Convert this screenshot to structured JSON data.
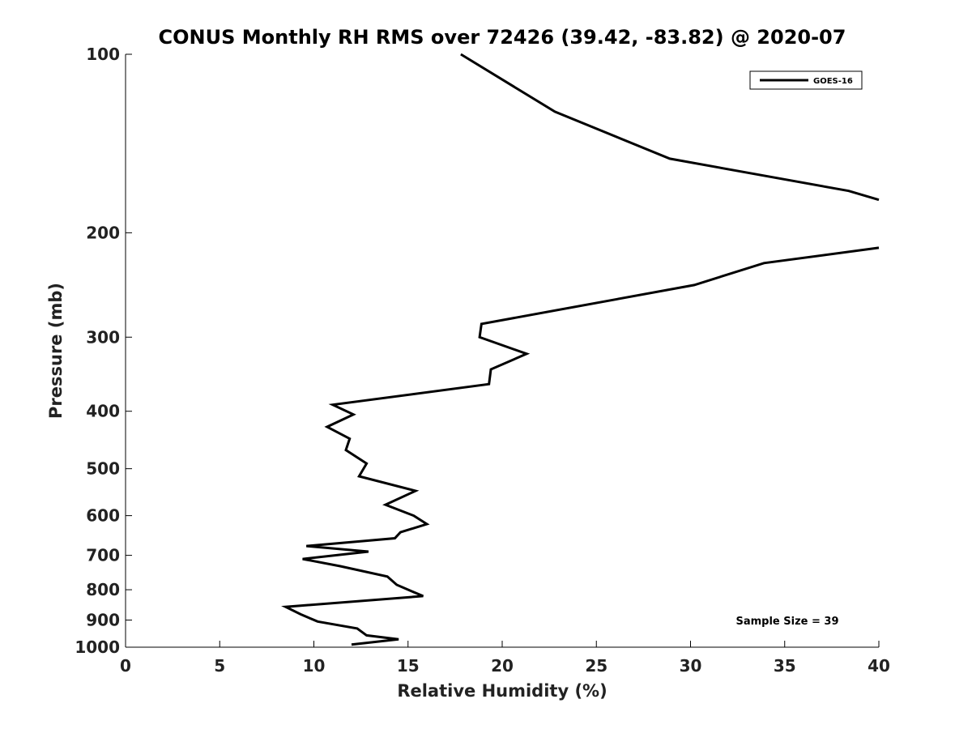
{
  "chart_data": {
    "type": "line",
    "title": "CONUS Monthly RH RMS over 72426 (39.42, -83.82) @ 2020-07",
    "xlabel": "Relative Humidity (%)",
    "ylabel": "Pressure (mb)",
    "xlim": [
      0,
      40
    ],
    "ylim": [
      100,
      1000
    ],
    "y_scale": "log",
    "y_reversed": true,
    "x_ticks": [
      0,
      5,
      10,
      15,
      20,
      25,
      30,
      35,
      40
    ],
    "x_tick_labels": [
      "0",
      "5",
      "10",
      "15",
      "20",
      "25",
      "30",
      "35",
      "40"
    ],
    "y_ticks": [
      100,
      200,
      300,
      400,
      500,
      600,
      700,
      800,
      900,
      1000
    ],
    "y_tick_labels": [
      "100",
      "200",
      "300",
      "400",
      "500",
      "600",
      "700",
      "800",
      "900",
      "1000"
    ],
    "grid": false,
    "legend_position": "top-right",
    "annotation": "Sample Size = 39",
    "line_color": "#000000",
    "series": [
      {
        "name": "GOES-16",
        "segments": [
          {
            "x": [
              17.8,
              22.8,
              28.9,
              38.4,
              40.0
            ],
            "y": [
              100,
              125,
              150,
              170,
              176
            ]
          },
          {
            "x": [
              40.0,
              33.9,
              30.2,
              18.9,
              18.8,
              21.3,
              19.4,
              19.3,
              11.0,
              12.1,
              10.7,
              11.9,
              11.7,
              12.8,
              12.4,
              15.4,
              13.8,
              15.3,
              16.0,
              14.6,
              14.3,
              9.6,
              12.9,
              9.4,
              11.4,
              13.9,
              14.4,
              15.2,
              15.8,
              8.5,
              9.3,
              10.2,
              12.3,
              12.8,
              14.5,
              12.0
            ],
            "y": [
              212,
              225,
              245,
              285,
              300,
              320,
              340,
              360,
              390,
              405,
              425,
              445,
              465,
              490,
              515,
              545,
              575,
              600,
              620,
              640,
              655,
              675,
              690,
              710,
              730,
              760,
              785,
              805,
              820,
              855,
              880,
              905,
              930,
              955,
              970,
              990
            ]
          }
        ]
      }
    ]
  }
}
